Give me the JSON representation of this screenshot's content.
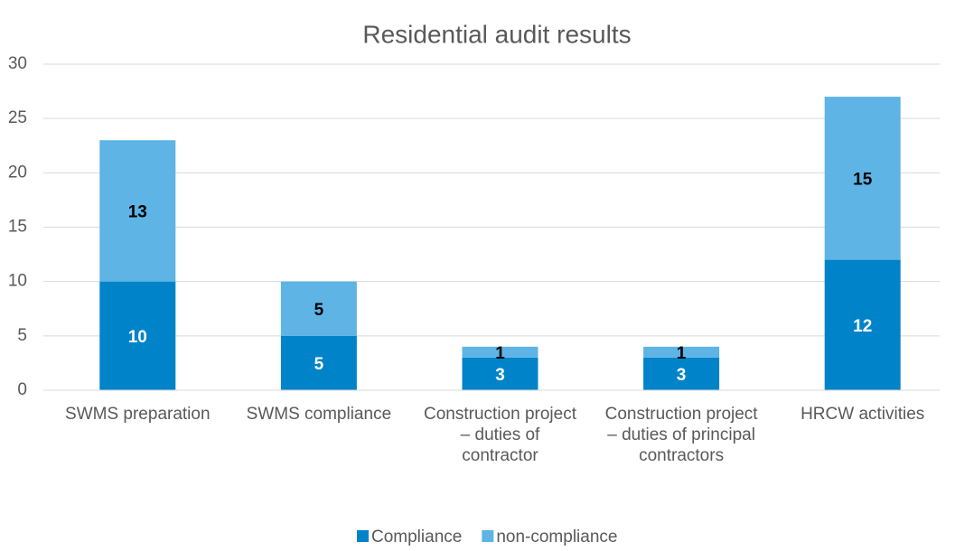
{
  "chart_data": {
    "type": "stacked_bar",
    "title": "Residential audit results",
    "categories": [
      "SWMS preparation",
      "SWMS compliance",
      "Construction project – duties of contractor",
      "Construction project – duties of principal contractors",
      "HRCW activities"
    ],
    "series": [
      {
        "name": "Compliance",
        "color": "#0083c9",
        "label_color": "#ffffff",
        "values": [
          10,
          5,
          3,
          3,
          12
        ]
      },
      {
        "name": "non-compliance",
        "color": "#5db4e5",
        "label_color": "#000000",
        "values": [
          13,
          5,
          1,
          1,
          15
        ]
      }
    ],
    "ylim": [
      0,
      30
    ],
    "yticks": [
      0,
      5,
      10,
      15,
      20,
      25,
      30
    ],
    "grid": true,
    "legend": "bottom"
  }
}
